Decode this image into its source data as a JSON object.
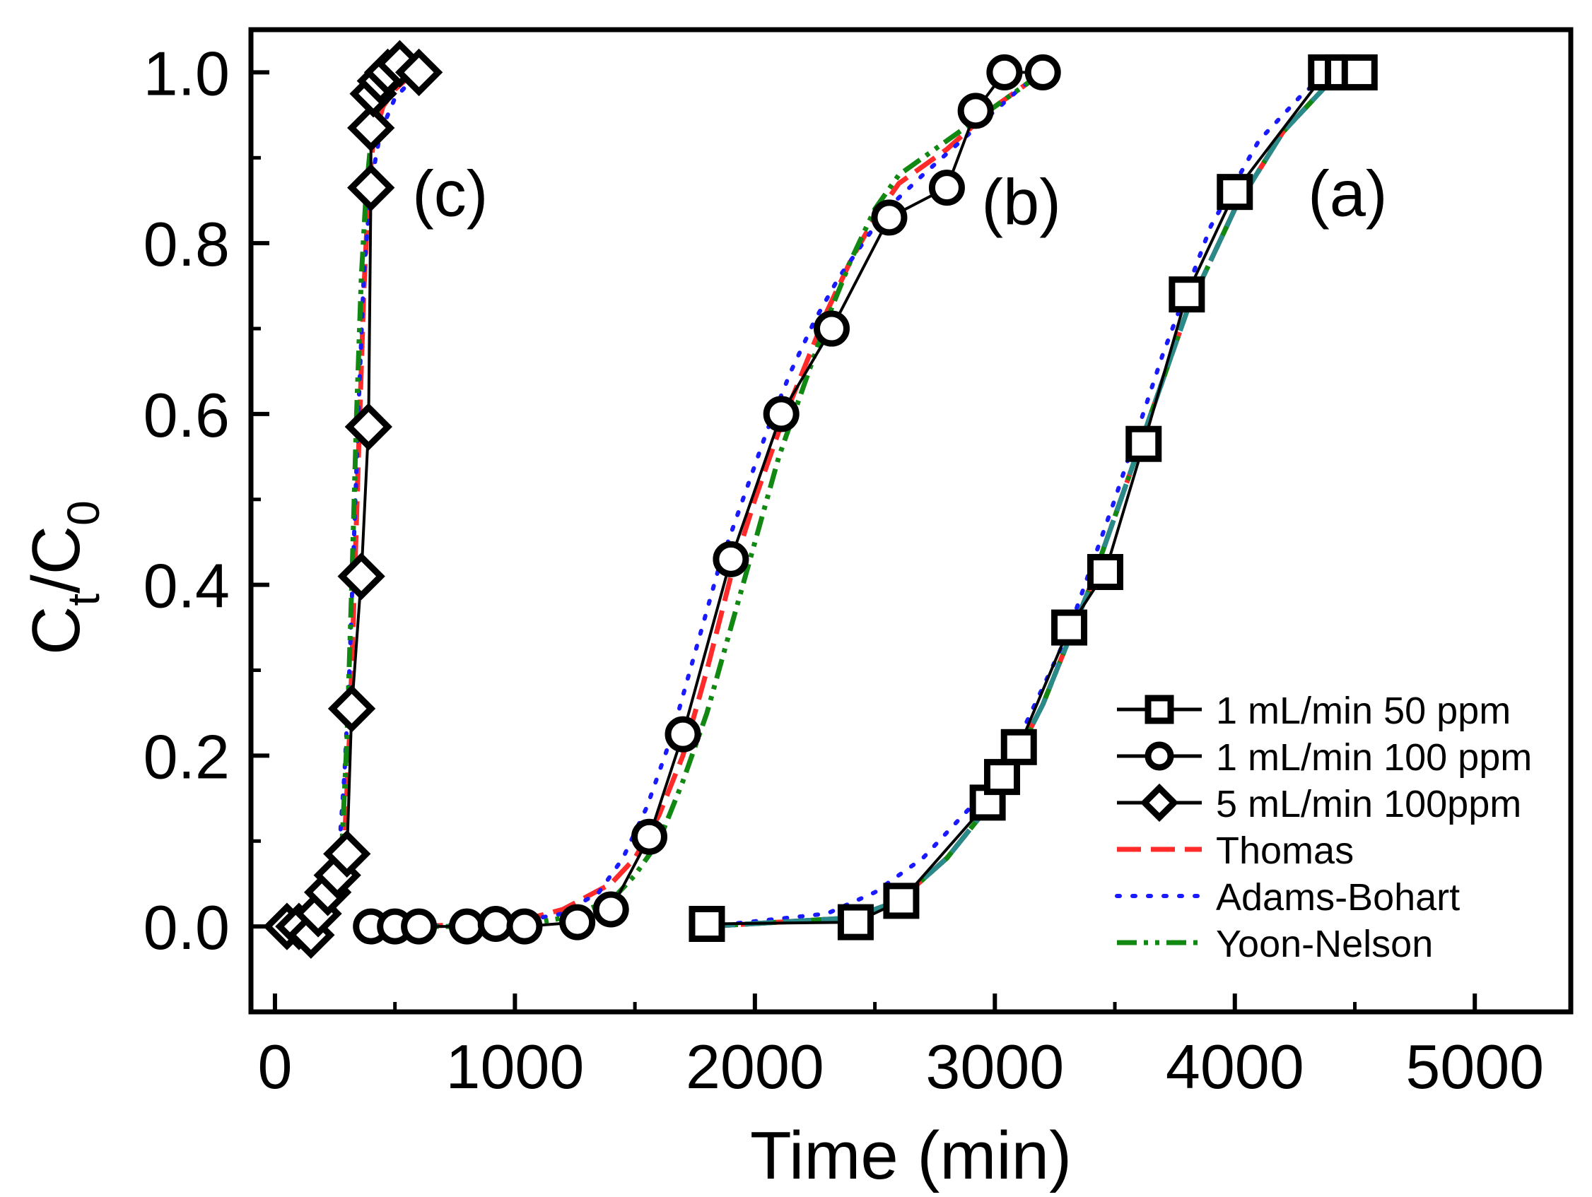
{
  "chart_data": {
    "type": "line",
    "xlabel": "Time (min)",
    "ylabel": {
      "main": "C",
      "sub1": "t",
      "mid": "/C",
      "sub2": "0"
    },
    "xlim": [
      -100,
      5400
    ],
    "ylim": [
      -0.1,
      1.05
    ],
    "xticks": [
      0,
      1000,
      2000,
      3000,
      4000,
      5000
    ],
    "yticks": [
      0.0,
      0.2,
      0.4,
      0.6,
      0.8,
      1.0
    ],
    "xtick_labels": [
      "0",
      "1000",
      "2000",
      "3000",
      "4000",
      "5000"
    ],
    "ytick_labels": [
      "0.0",
      "0.2",
      "0.4",
      "0.6",
      "0.8",
      "1.0"
    ],
    "annotations": [
      {
        "text": "(c)",
        "x": 730,
        "y": 0.86
      },
      {
        "text": "(b)",
        "x": 3110,
        "y": 0.85
      },
      {
        "text": "(a)",
        "x": 4470,
        "y": 0.86
      }
    ],
    "series": [
      {
        "name": "1 mL/min  50 ppm",
        "marker": "square",
        "color": "#000000",
        "x": [
          1800,
          2420,
          2610,
          2970,
          3030,
          3100,
          3310,
          3460,
          3620,
          3800,
          4000,
          4380,
          4450,
          4520
        ],
        "y": [
          0.003,
          0.005,
          0.03,
          0.145,
          0.175,
          0.21,
          0.35,
          0.415,
          0.565,
          0.74,
          0.86,
          1.0,
          1.0,
          1.0
        ]
      },
      {
        "name": "1 mL/min 100 ppm",
        "marker": "circle",
        "color": "#000000",
        "x": [
          400,
          500,
          600,
          800,
          920,
          1040,
          1260,
          1400,
          1560,
          1700,
          1900,
          2110,
          2320,
          2560,
          2800,
          2920,
          3040,
          3200
        ],
        "y": [
          0.0,
          0.0,
          0.0,
          0.0,
          0.003,
          0.0,
          0.005,
          0.02,
          0.105,
          0.225,
          0.43,
          0.6,
          0.7,
          0.83,
          0.865,
          0.955,
          1.0,
          1.0
        ]
      },
      {
        "name": "5 mL/min 100ppm",
        "marker": "diamond",
        "color": "#000000",
        "x": [
          50,
          100,
          150,
          180,
          220,
          260,
          300,
          320,
          360,
          390,
          400,
          400,
          410,
          440,
          470,
          520,
          600
        ],
        "y": [
          0.0,
          0.0,
          -0.01,
          0.015,
          0.04,
          0.06,
          0.085,
          0.255,
          0.41,
          0.585,
          0.865,
          0.935,
          0.975,
          0.99,
          1.0,
          1.01,
          1.0
        ]
      },
      {
        "name": "Thomas",
        "line_style": "dash",
        "color": "#ff2a2a",
        "segments": [
          {
            "x": [
              50,
              150,
              220,
              260,
              290,
              310,
              330,
              350,
              370,
              390,
              410,
              450,
              500,
              580
            ],
            "y": [
              0.0,
              0.0,
              0.005,
              0.03,
              0.1,
              0.22,
              0.39,
              0.57,
              0.74,
              0.86,
              0.92,
              0.96,
              0.98,
              1.0
            ]
          },
          {
            "x": [
              600,
              1000,
              1200,
              1400,
              1500,
              1600,
              1700,
              1800,
              1900,
              2000,
              2100,
              2200,
              2300,
              2400,
              2500,
              2600,
              2800,
              3000,
              3200
            ],
            "y": [
              0.0,
              0.005,
              0.02,
              0.05,
              0.08,
              0.13,
              0.2,
              0.3,
              0.41,
              0.5,
              0.58,
              0.65,
              0.72,
              0.78,
              0.83,
              0.87,
              0.91,
              0.96,
              1.0
            ]
          },
          {
            "x": [
              1800,
              2400,
              2600,
              2800,
              3000,
              3200,
              3400,
              3600,
              3800,
              4000,
              4200,
              4400,
              4520
            ],
            "y": [
              0.0,
              0.01,
              0.03,
              0.08,
              0.15,
              0.26,
              0.4,
              0.56,
              0.72,
              0.84,
              0.93,
              0.99,
              1.0
            ]
          }
        ]
      },
      {
        "name": "Adams-Bohart",
        "line_style": "dot",
        "color": "#1a1aff",
        "segments": [
          {
            "x": [
              50,
              150,
              200,
              240,
              270,
              290,
              310,
              330,
              350,
              370,
              400,
              440,
              500,
              600
            ],
            "y": [
              0.0,
              0.005,
              0.02,
              0.05,
              0.1,
              0.18,
              0.3,
              0.46,
              0.62,
              0.76,
              0.87,
              0.93,
              0.97,
              1.0
            ]
          },
          {
            "x": [
              600,
              1000,
              1200,
              1350,
              1450,
              1550,
              1650,
              1750,
              1850,
              1950,
              2050,
              2150,
              2250,
              2350,
              2450,
              2550,
              2700,
              2900,
              3100,
              3200
            ],
            "y": [
              0.0,
              0.005,
              0.015,
              0.04,
              0.08,
              0.14,
              0.22,
              0.32,
              0.42,
              0.5,
              0.58,
              0.65,
              0.71,
              0.76,
              0.8,
              0.84,
              0.88,
              0.93,
              0.98,
              1.0
            ]
          },
          {
            "x": [
              1800,
              2300,
              2500,
              2700,
              2900,
              3100,
              3300,
              3500,
              3700,
              3900,
              4100,
              4300,
              4520
            ],
            "y": [
              0.0,
              0.015,
              0.04,
              0.08,
              0.14,
              0.22,
              0.34,
              0.5,
              0.67,
              0.82,
              0.92,
              0.98,
              1.0
            ]
          }
        ]
      },
      {
        "name": "Yoon-Nelson",
        "line_style": "dashdotdot",
        "color": "#118811",
        "segments": [
          {
            "x": [
              50,
              150,
              210,
              250,
              280,
              300,
              320,
              340,
              360,
              380,
              400,
              430,
              470,
              520,
              600
            ],
            "y": [
              0.0,
              0.0,
              0.005,
              0.03,
              0.1,
              0.22,
              0.4,
              0.6,
              0.76,
              0.86,
              0.92,
              0.96,
              0.98,
              0.99,
              1.0
            ]
          },
          {
            "x": [
              600,
              1000,
              1200,
              1400,
              1500,
              1600,
              1700,
              1800,
              1900,
              2000,
              2100,
              2200,
              2300,
              2400,
              2500,
              2600,
              2800,
              3000,
              3200
            ],
            "y": [
              0.0,
              0.0,
              0.01,
              0.03,
              0.06,
              0.1,
              0.17,
              0.25,
              0.35,
              0.45,
              0.55,
              0.63,
              0.71,
              0.78,
              0.84,
              0.88,
              0.92,
              0.96,
              1.0
            ]
          },
          {
            "x": [
              1800,
              2400,
              2600,
              2800,
              3000,
              3200,
              3400,
              3600,
              3800,
              4000,
              4200,
              4400,
              4520
            ],
            "y": [
              0.0,
              0.01,
              0.03,
              0.08,
              0.15,
              0.26,
              0.4,
              0.56,
              0.72,
              0.84,
              0.93,
              0.99,
              1.0
            ]
          }
        ]
      },
      {
        "name": "fit-a-overlay",
        "in_legend": false,
        "line_style": "longdash",
        "color": "#2a8a8a",
        "segments": [
          {
            "x": [
              1800,
              2400,
              2600,
              2800,
              3000,
              3200,
              3400,
              3600,
              3800,
              4000,
              4200,
              4400,
              4520
            ],
            "y": [
              0.0,
              0.01,
              0.03,
              0.08,
              0.15,
              0.26,
              0.4,
              0.56,
              0.72,
              0.84,
              0.93,
              0.99,
              1.0
            ]
          }
        ]
      }
    ]
  }
}
